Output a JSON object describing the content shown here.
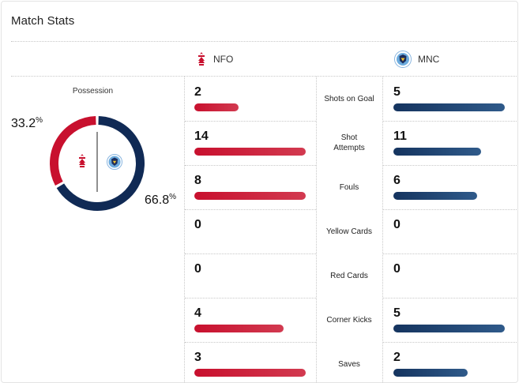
{
  "title": "Match Stats",
  "teams": {
    "home": {
      "short": "NFO",
      "color": "#c8102e"
    },
    "away": {
      "short": "MNC",
      "color": "#102a55"
    }
  },
  "possession": {
    "label": "Possession",
    "home_pct": "33.2",
    "away_pct": "66.8",
    "pct_sign": "%",
    "home_value": 33.2,
    "away_value": 66.8
  },
  "stats": [
    {
      "label": "Shots on Goal",
      "home": "2",
      "away": "5",
      "home_fill": 0.4,
      "away_fill": 1.0
    },
    {
      "label": "Shot Attempts",
      "home": "14",
      "away": "11",
      "home_fill": 1.0,
      "away_fill": 0.79
    },
    {
      "label": "Fouls",
      "home": "8",
      "away": "6",
      "home_fill": 1.0,
      "away_fill": 0.75
    },
    {
      "label": "Yellow Cards",
      "home": "0",
      "away": "0",
      "home_fill": 0,
      "away_fill": 0
    },
    {
      "label": "Red Cards",
      "home": "0",
      "away": "0",
      "home_fill": 0,
      "away_fill": 0
    },
    {
      "label": "Corner Kicks",
      "home": "4",
      "away": "5",
      "home_fill": 0.8,
      "away_fill": 1.0
    },
    {
      "label": "Saves",
      "home": "3",
      "away": "2",
      "home_fill": 1.0,
      "away_fill": 0.67
    }
  ]
}
